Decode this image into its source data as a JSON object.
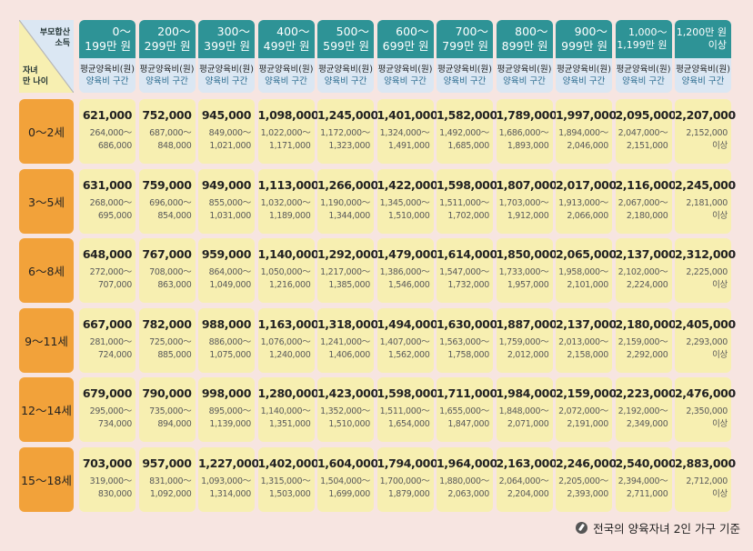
{
  "corner": {
    "income_label": [
      "부모합산",
      "소득"
    ],
    "age_label": [
      "자녀",
      "만 나이"
    ]
  },
  "columns": [
    {
      "line1": "0～",
      "line2": "199만 원"
    },
    {
      "line1": "200～",
      "line2": "299만 원"
    },
    {
      "line1": "300～",
      "line2": "399만 원"
    },
    {
      "line1": "400～",
      "line2": "499만 원"
    },
    {
      "line1": "500～",
      "line2": "599만 원"
    },
    {
      "line1": "600～",
      "line2": "699만 원"
    },
    {
      "line1": "700～",
      "line2": "799만 원"
    },
    {
      "line1": "800～",
      "line2": "899만 원"
    },
    {
      "line1": "900～",
      "line2": "999만 원"
    },
    {
      "line1": "1,000～",
      "line2": "1,199만 원"
    },
    {
      "line1": "1,200만 원",
      "line2": "이상"
    }
  ],
  "sub_header": {
    "avg": "평균양육비(원)",
    "range": "양육비 구간"
  },
  "rows": [
    {
      "age": "0～2세",
      "cells": [
        {
          "avg": "621,000",
          "r1": "264,000～",
          "r2": "686,000"
        },
        {
          "avg": "752,000",
          "r1": "687,000～",
          "r2": "848,000"
        },
        {
          "avg": "945,000",
          "r1": "849,000～",
          "r2": "1,021,000"
        },
        {
          "avg": "1,098,000",
          "r1": "1,022,000～",
          "r2": "1,171,000"
        },
        {
          "avg": "1,245,000",
          "r1": "1,172,000～",
          "r2": "1,323,000"
        },
        {
          "avg": "1,401,000",
          "r1": "1,324,000～",
          "r2": "1,491,000"
        },
        {
          "avg": "1,582,000",
          "r1": "1,492,000～",
          "r2": "1,685,000"
        },
        {
          "avg": "1,789,000",
          "r1": "1,686,000～",
          "r2": "1,893,000"
        },
        {
          "avg": "1,997,000",
          "r1": "1,894,000～",
          "r2": "2,046,000"
        },
        {
          "avg": "2,095,000",
          "r1": "2,047,000～",
          "r2": "2,151,000"
        },
        {
          "avg": "2,207,000",
          "r1": "2,152,000",
          "r2": "이상"
        }
      ]
    },
    {
      "age": "3～5세",
      "cells": [
        {
          "avg": "631,000",
          "r1": "268,000～",
          "r2": "695,000"
        },
        {
          "avg": "759,000",
          "r1": "696,000～",
          "r2": "854,000"
        },
        {
          "avg": "949,000",
          "r1": "855,000～",
          "r2": "1,031,000"
        },
        {
          "avg": "1,113,000",
          "r1": "1,032,000～",
          "r2": "1,189,000"
        },
        {
          "avg": "1,266,000",
          "r1": "1,190,000～",
          "r2": "1,344,000"
        },
        {
          "avg": "1,422,000",
          "r1": "1,345,000～",
          "r2": "1,510,000"
        },
        {
          "avg": "1,598,000",
          "r1": "1,511,000～",
          "r2": "1,702,000"
        },
        {
          "avg": "1,807,000",
          "r1": "1,703,000～",
          "r2": "1,912,000"
        },
        {
          "avg": "2,017,000",
          "r1": "1,913,000～",
          "r2": "2,066,000"
        },
        {
          "avg": "2,116,000",
          "r1": "2,067,000～",
          "r2": "2,180,000"
        },
        {
          "avg": "2,245,000",
          "r1": "2,181,000",
          "r2": "이상"
        }
      ]
    },
    {
      "age": "6～8세",
      "cells": [
        {
          "avg": "648,000",
          "r1": "272,000～",
          "r2": "707,000"
        },
        {
          "avg": "767,000",
          "r1": "708,000～",
          "r2": "863,000"
        },
        {
          "avg": "959,000",
          "r1": "864,000～",
          "r2": "1,049,000"
        },
        {
          "avg": "1,140,000",
          "r1": "1,050,000～",
          "r2": "1,216,000"
        },
        {
          "avg": "1,292,000",
          "r1": "1,217,000～",
          "r2": "1,385,000"
        },
        {
          "avg": "1,479,000",
          "r1": "1,386,000～",
          "r2": "1,546,000"
        },
        {
          "avg": "1,614,000",
          "r1": "1,547,000～",
          "r2": "1,732,000"
        },
        {
          "avg": "1,850,000",
          "r1": "1,733,000～",
          "r2": "1,957,000"
        },
        {
          "avg": "2,065,000",
          "r1": "1,958,000～",
          "r2": "2,101,000"
        },
        {
          "avg": "2,137,000",
          "r1": "2,102,000～",
          "r2": "2,224,000"
        },
        {
          "avg": "2,312,000",
          "r1": "2,225,000",
          "r2": "이상"
        }
      ]
    },
    {
      "age": "9～11세",
      "cells": [
        {
          "avg": "667,000",
          "r1": "281,000～",
          "r2": "724,000"
        },
        {
          "avg": "782,000",
          "r1": "725,000～",
          "r2": "885,000"
        },
        {
          "avg": "988,000",
          "r1": "886,000～",
          "r2": "1,075,000"
        },
        {
          "avg": "1,163,000",
          "r1": "1,076,000～",
          "r2": "1,240,000"
        },
        {
          "avg": "1,318,000",
          "r1": "1,241,000～",
          "r2": "1,406,000"
        },
        {
          "avg": "1,494,000",
          "r1": "1,407,000～",
          "r2": "1,562,000"
        },
        {
          "avg": "1,630,000",
          "r1": "1,563,000～",
          "r2": "1,758,000"
        },
        {
          "avg": "1,887,000",
          "r1": "1,759,000～",
          "r2": "2,012,000"
        },
        {
          "avg": "2,137,000",
          "r1": "2,013,000～",
          "r2": "2,158,000"
        },
        {
          "avg": "2,180,000",
          "r1": "2,159,000～",
          "r2": "2,292,000"
        },
        {
          "avg": "2,405,000",
          "r1": "2,293,000",
          "r2": "이상"
        }
      ]
    },
    {
      "age": "12～14세",
      "cells": [
        {
          "avg": "679,000",
          "r1": "295,000～",
          "r2": "734,000"
        },
        {
          "avg": "790,000",
          "r1": "735,000～",
          "r2": "894,000"
        },
        {
          "avg": "998,000",
          "r1": "895,000～",
          "r2": "1,139,000"
        },
        {
          "avg": "1,280,000",
          "r1": "1,140,000～",
          "r2": "1,351,000"
        },
        {
          "avg": "1,423,000",
          "r1": "1,352,000～",
          "r2": "1,510,000"
        },
        {
          "avg": "1,598,000",
          "r1": "1,511,000～",
          "r2": "1,654,000"
        },
        {
          "avg": "1,711,000",
          "r1": "1,655,000～",
          "r2": "1,847,000"
        },
        {
          "avg": "1,984,000",
          "r1": "1,848,000～",
          "r2": "2,071,000"
        },
        {
          "avg": "2,159,000",
          "r1": "2,072,000～",
          "r2": "2,191,000"
        },
        {
          "avg": "2,223,000",
          "r1": "2,192,000～",
          "r2": "2,349,000"
        },
        {
          "avg": "2,476,000",
          "r1": "2,350,000",
          "r2": "이상"
        }
      ]
    },
    {
      "age": "15～18세",
      "cells": [
        {
          "avg": "703,000",
          "r1": "319,000～",
          "r2": "830,000"
        },
        {
          "avg": "957,000",
          "r1": "831,000～",
          "r2": "1,092,000"
        },
        {
          "avg": "1,227,000",
          "r1": "1,093,000～",
          "r2": "1,314,000"
        },
        {
          "avg": "1,402,000",
          "r1": "1,315,000～",
          "r2": "1,503,000"
        },
        {
          "avg": "1,604,000",
          "r1": "1,504,000～",
          "r2": "1,699,000"
        },
        {
          "avg": "1,794,000",
          "r1": "1,700,000～",
          "r2": "1,879,000"
        },
        {
          "avg": "1,964,000",
          "r1": "1,880,000～",
          "r2": "2,063,000"
        },
        {
          "avg": "2,163,000",
          "r1": "2,064,000～",
          "r2": "2,204,000"
        },
        {
          "avg": "2,246,000",
          "r1": "2,205,000～",
          "r2": "2,393,000"
        },
        {
          "avg": "2,540,000",
          "r1": "2,394,000～",
          "r2": "2,711,000"
        },
        {
          "avg": "2,883,000",
          "r1": "2,712,000",
          "r2": "이상"
        }
      ]
    }
  ],
  "footnote": {
    "text": "전국의 양육자녀 2인 가구 기준",
    "icon": "pen-icon"
  }
}
